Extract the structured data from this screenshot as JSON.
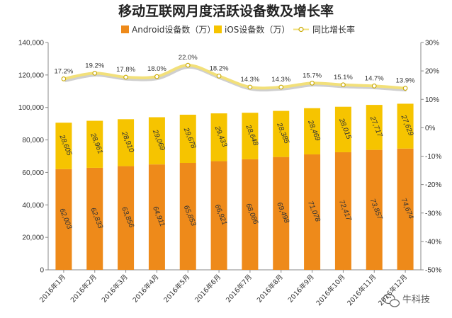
{
  "chart_data": {
    "type": "bar",
    "stacked": true,
    "title": "移动互联网月度活跃设备数及增长率",
    "categories": [
      "2016年1月",
      "2016年2月",
      "2016年3月",
      "2016年4月",
      "2016年5月",
      "2016年6月",
      "2016年7月",
      "2016年8月",
      "2016年9月",
      "2016年10月",
      "2016年11月",
      "2016年12月"
    ],
    "series": [
      {
        "name": "Android设备数（万）",
        "type": "bar",
        "axis": "left",
        "color": "#ee8a1a",
        "values": [
          62003,
          62833,
          63856,
          64911,
          65853,
          66921,
          68086,
          69498,
          71078,
          72417,
          73857,
          74674
        ],
        "labels": [
          "62,003",
          "62,833",
          "63,856",
          "64,911",
          "65,853",
          "66,921",
          "68,086",
          "69,498",
          "71,078",
          "72,417",
          "73,857",
          "74,674"
        ]
      },
      {
        "name": "iOS设备数（万）",
        "type": "bar",
        "axis": "left",
        "color": "#f6c400",
        "values": [
          28605,
          28961,
          28910,
          29069,
          29678,
          29433,
          28648,
          28385,
          28469,
          28015,
          27717,
          27629
        ],
        "labels": [
          "28,605",
          "28,961",
          "28,910",
          "29,069",
          "29,678",
          "29,433",
          "28,648",
          "28,385",
          "28,469",
          "28,015",
          "27,717",
          "27,629"
        ]
      },
      {
        "name": "同比增长率",
        "type": "line",
        "axis": "right",
        "color": "#f2e07a",
        "values": [
          17.2,
          19.2,
          17.8,
          18.0,
          22.0,
          18.2,
          14.3,
          14.3,
          15.7,
          15.1,
          14.7,
          13.9
        ],
        "labels": [
          "17.2%",
          "19.2%",
          "17.8%",
          "18.0%",
          "22.0%",
          "18.2%",
          "14.3%",
          "14.3%",
          "15.7%",
          "15.1%",
          "14.7%",
          "13.9%"
        ]
      }
    ],
    "left_axis": {
      "min": 0,
      "max": 140000,
      "step": 20000,
      "tick_labels": [
        "0",
        "20,000",
        "40,000",
        "60,000",
        "80,000",
        "100,000",
        "120,000",
        "140,000"
      ]
    },
    "right_axis": {
      "min": -50,
      "max": 30,
      "step": 10,
      "tick_labels": [
        "-50%",
        "-40%",
        "-30%",
        "-20%",
        "-10%",
        "0%",
        "10%",
        "20%",
        "30%"
      ]
    },
    "legend_position": "top-center",
    "grid": false
  },
  "watermark": {
    "text": "牛科技",
    "icon": "wechat-icon"
  }
}
